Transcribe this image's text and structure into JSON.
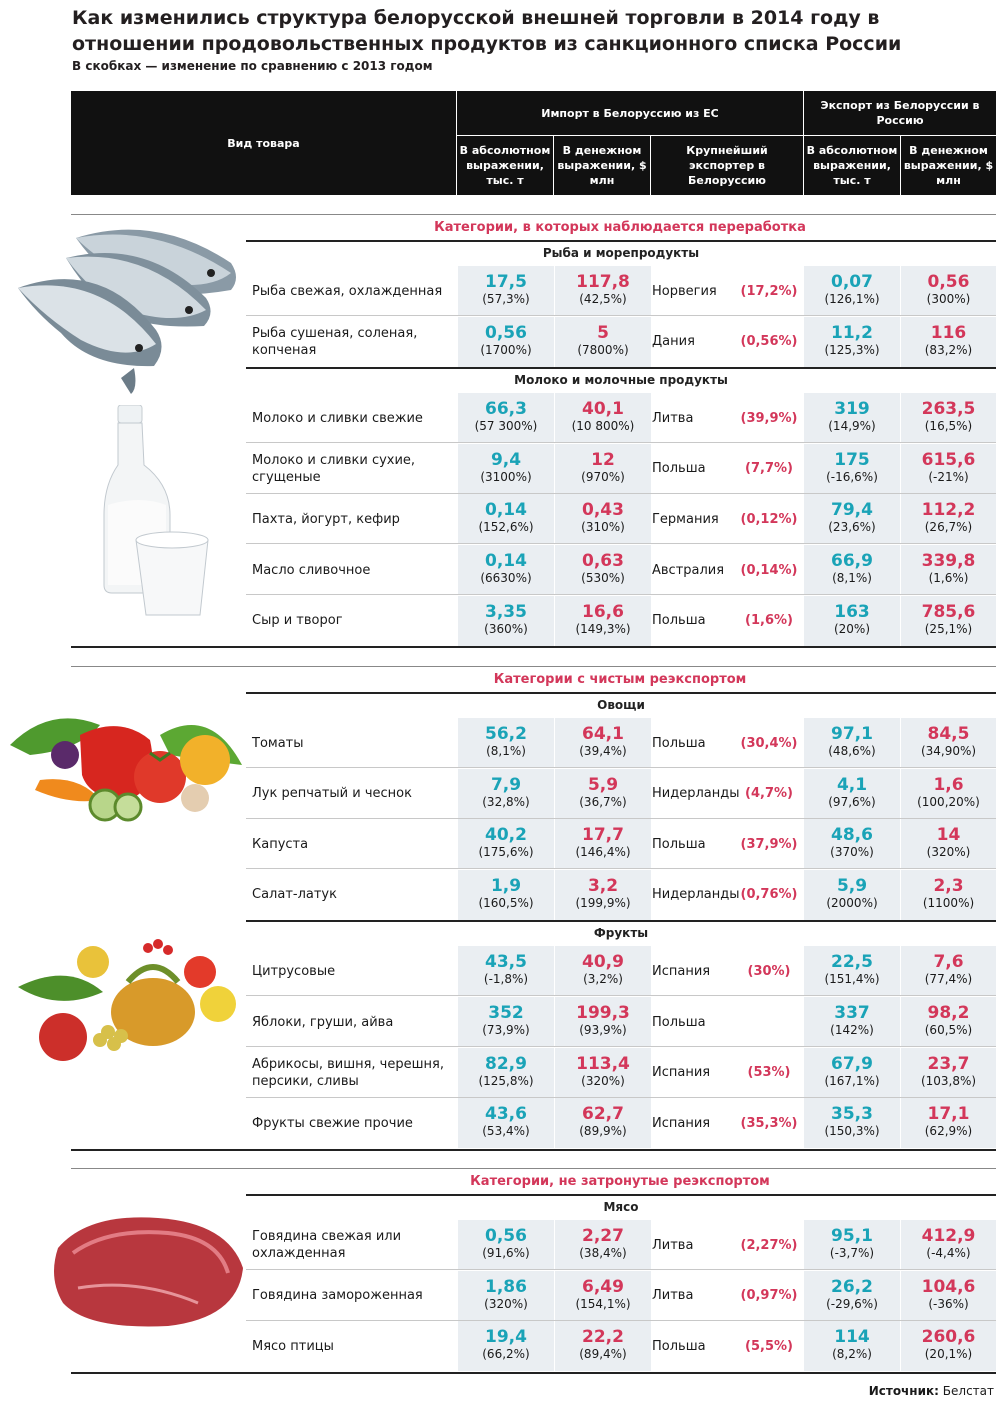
{
  "title": "Как изменились структура белорусской внешней торговли в 2014 году в отношении продовольственных продуктов из санкционного списка России",
  "subtitle": "В скобках — изменение по сравнению с 2013 годом",
  "header": {
    "product": "Вид товара",
    "import_group": "Импорт в Белоруссию из ЕС",
    "export_group": "Экспорт из Белоруссии в Россию",
    "import_abs": "В абсолютном выражении, тыс. т",
    "import_money": "В денежном выражении, $ млн",
    "largest_exporter": "Крупнейший экспортер в Белоруссию",
    "export_abs": "В абсолютном выражении, тыс. т",
    "export_money": "В денежном выражении, $ млн"
  },
  "categories": [
    {
      "title": "Категории, в которых наблюдается переработка",
      "groups": [
        {
          "name": "Рыба и морепродукты",
          "rows": [
            {
              "name": "Рыба свежая, охлажденная",
              "ia": "17,5",
              "iac": "(57,3%)",
              "im": "117,8",
              "imc": "(42,5%)",
              "exp": "Норвегия",
              "share": "(17,2%)",
              "ea": "0,07",
              "eac": "(126,1%)",
              "em": "0,56",
              "emc": "(300%)"
            },
            {
              "name": "Рыба сушеная, соленая, копченая",
              "ia": "0,56",
              "iac": "(1700%)",
              "im": "5",
              "imc": "(7800%)",
              "exp": "Дания",
              "share": "(0,56%)",
              "ea": "11,2",
              "eac": "(125,3%)",
              "em": "116",
              "emc": "(83,2%)"
            }
          ]
        },
        {
          "name": "Молоко и молочные продукты",
          "rows": [
            {
              "name": "Молоко и сливки свежие",
              "ia": "66,3",
              "iac": "(57 300%)",
              "im": "40,1",
              "imc": "(10 800%)",
              "exp": "Литва",
              "share": "(39,9%)",
              "ea": "319",
              "eac": "(14,9%)",
              "em": "263,5",
              "emc": "(16,5%)"
            },
            {
              "name": "Молоко и сливки сухие, сгущеные",
              "ia": "9,4",
              "iac": "(3100%)",
              "im": "12",
              "imc": "(970%)",
              "exp": "Польша",
              "share": "(7,7%)",
              "ea": "175",
              "eac": "(-16,6%)",
              "em": "615,6",
              "emc": "(-21%)"
            },
            {
              "name": "Пахта, йогурт, кефир",
              "ia": "0,14",
              "iac": "(152,6%)",
              "im": "0,43",
              "imc": "(310%)",
              "exp": "Германия",
              "share": "(0,12%)",
              "ea": "79,4",
              "eac": "(23,6%)",
              "em": "112,2",
              "emc": "(26,7%)"
            },
            {
              "name": "Масло сливочное",
              "ia": "0,14",
              "iac": "(6630%)",
              "im": "0,63",
              "imc": "(530%)",
              "exp": "Австралия",
              "share": "(0,14%)",
              "ea": "66,9",
              "eac": "(8,1%)",
              "em": "339,8",
              "emc": "(1,6%)"
            },
            {
              "name": "Сыр и творог",
              "ia": "3,35",
              "iac": "(360%)",
              "im": "16,6",
              "imc": "(149,3%)",
              "exp": "Польша",
              "share": "(1,6%)",
              "ea": "163",
              "eac": "(20%)",
              "em": "785,6",
              "emc": "(25,1%)"
            }
          ]
        }
      ]
    },
    {
      "title": "Категории с чистым реэкспортом",
      "groups": [
        {
          "name": "Овощи",
          "rows": [
            {
              "name": "Томаты",
              "ia": "56,2",
              "iac": "(8,1%)",
              "im": "64,1",
              "imc": "(39,4%)",
              "exp": "Польша",
              "share": "(30,4%)",
              "ea": "97,1",
              "eac": "(48,6%)",
              "em": "84,5",
              "emc": "(34,90%)"
            },
            {
              "name": "Лук репчатый и чеснок",
              "ia": "7,9",
              "iac": "(32,8%)",
              "im": "5,9",
              "imc": "(36,7%)",
              "exp": "Нидерланды",
              "share": "(4,7%)",
              "ea": "4,1",
              "eac": "(97,6%)",
              "em": "1,6",
              "emc": "(100,20%)"
            },
            {
              "name": "Капуста",
              "ia": "40,2",
              "iac": "(175,6%)",
              "im": "17,7",
              "imc": "(146,4%)",
              "exp": "Польша",
              "share": "(37,9%)",
              "ea": "48,6",
              "eac": "(370%)",
              "em": "14",
              "emc": "(320%)"
            },
            {
              "name": "Салат-латук",
              "ia": "1,9",
              "iac": "(160,5%)",
              "im": "3,2",
              "imc": "(199,9%)",
              "exp": "Нидерланды",
              "share": "(0,76%)",
              "ea": "5,9",
              "eac": "(2000%)",
              "em": "2,3",
              "emc": "(1100%)"
            }
          ]
        },
        {
          "name": "Фрукты",
          "rows": [
            {
              "name": "Цитрусовые",
              "ia": "43,5",
              "iac": "(-1,8%)",
              "im": "40,9",
              "imc": "(3,2%)",
              "exp": "Испания",
              "share": "(30%)",
              "ea": "22,5",
              "eac": "(151,4%)",
              "em": "7,6",
              "emc": "(77,4%)"
            },
            {
              "name": "Яблоки, груши, айва",
              "ia": "352",
              "iac": "(73,9%)",
              "im": "199,3",
              "imc": "(93,9%)",
              "exp": "Польша",
              "share": "",
              "ea": "337",
              "eac": "(142%)",
              "em": "98,2",
              "emc": "(60,5%)"
            },
            {
              "name": "Абрикосы, вишня, черешня, персики, сливы",
              "ia": "82,9",
              "iac": "(125,8%)",
              "im": "113,4",
              "imc": "(320%)",
              "exp": "Испания",
              "share": "(53%)",
              "ea": "67,9",
              "eac": "(167,1%)",
              "em": "23,7",
              "emc": "(103,8%)"
            },
            {
              "name": "Фрукты свежие прочие",
              "ia": "43,6",
              "iac": "(53,4%)",
              "im": "62,7",
              "imc": "(89,9%)",
              "exp": "Испания",
              "share": "(35,3%)",
              "ea": "35,3",
              "eac": "(150,3%)",
              "em": "17,1",
              "emc": "(62,9%)"
            }
          ]
        }
      ]
    },
    {
      "title": "Категории, не затронутые реэкспортом",
      "groups": [
        {
          "name": "Мясо",
          "rows": [
            {
              "name": "Говядина свежая или охлажденная",
              "ia": "0,56",
              "iac": "(91,6%)",
              "im": "2,27",
              "imc": "(38,4%)",
              "exp": "Литва",
              "share": "(2,27%)",
              "ea": "95,1",
              "eac": "(-3,7%)",
              "em": "412,9",
              "emc": "(-4,4%)"
            },
            {
              "name": "Говядина замороженная",
              "ia": "1,86",
              "iac": "(320%)",
              "im": "6,49",
              "imc": "(154,1%)",
              "exp": "Литва",
              "share": "(0,97%)",
              "ea": "26,2",
              "eac": "(-29,6%)",
              "em": "104,6",
              "emc": "(-36%)"
            },
            {
              "name": "Мясо птицы",
              "ia": "19,4",
              "iac": "(66,2%)",
              "im": "22,2",
              "imc": "(89,4%)",
              "exp": "Польша",
              "share": "(5,5%)",
              "ea": "114",
              "eac": "(8,2%)",
              "em": "260,6",
              "emc": "(20,1%)"
            }
          ]
        }
      ]
    }
  ],
  "source": {
    "label": "Источник:",
    "value": "Белстат"
  },
  "colors": {
    "teal": "#1aa3b7",
    "red": "#d3375a",
    "shade": "#eaeef2",
    "header": "#111111"
  },
  "illustrations": [
    "fish-illustration",
    "milk-illustration",
    "vegetables-illustration",
    "fruits-illustration",
    "meat-illustration"
  ]
}
